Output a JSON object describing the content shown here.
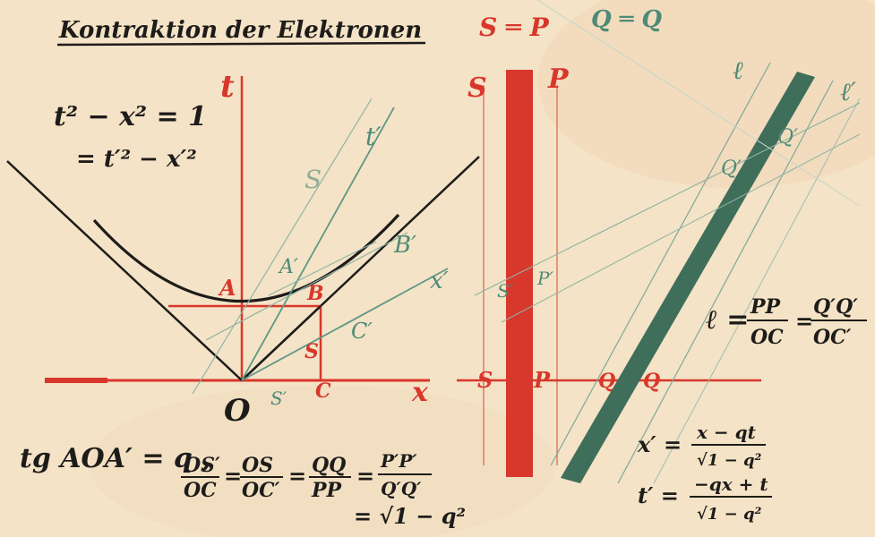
{
  "title": "Kontraktion der Elektronen",
  "axes": {
    "t": "t",
    "x": "x",
    "origin": "O"
  },
  "hyperbola_eq": {
    "line1": "t² − x² = 1",
    "line2": "= t′² − x′²"
  },
  "points": {
    "A": "A",
    "B": "B",
    "S": "S",
    "C": "C",
    "A_prime": "A′",
    "B_prime": "B′",
    "C_prime": "C′",
    "S_prime": "S′",
    "t_prime": "t′",
    "x_prime": "x′",
    "small_S": "S"
  },
  "rod_labels": {
    "top_pair": "S ═ P",
    "left_top": "S",
    "right_top": "P",
    "s_prime": "S′",
    "p_prime": "P′",
    "bottom_s": "S",
    "bottom_p": "P",
    "q_eq": "Q ═ Q",
    "q": "Q",
    "q2": "Q",
    "q_prime": "Q′",
    "q_prime2": "Q′",
    "l1": "ℓ",
    "l2": "ℓ",
    "l3": "ℓ′"
  },
  "formulas": {
    "tg": "tg AOA′ = q ,",
    "ratio_f1_num": "OS′",
    "ratio_f1_den": "OC",
    "ratio_f2_num": "OS",
    "ratio_f2_den": "OC′",
    "ratio_f3_num": "QQ",
    "ratio_f3_den": "PP",
    "ratio_f4_num": "P′P′",
    "ratio_f4_den": "Q′Q′",
    "sqrt": "= √1 − q²",
    "l_eq": "ℓ =",
    "l_f1_num": "PP",
    "l_f1_den": "OC",
    "l_f2_num": "Q′Q′",
    "l_f2_den": "OC′",
    "xprime_lhs": "x′ =",
    "xprime_num": "x − qt",
    "xprime_den": "√1 − q²",
    "tprime_lhs": "t′ =",
    "tprime_num": "−qx + t",
    "tprime_den": "√1 − q²"
  },
  "colors": {
    "paper": "#f4e3c6",
    "ink": "#1e1c1a",
    "red": "#d8372b",
    "light_red": "#e06a55",
    "green": "#4e8a78",
    "dark_green": "#3f6e5a"
  }
}
